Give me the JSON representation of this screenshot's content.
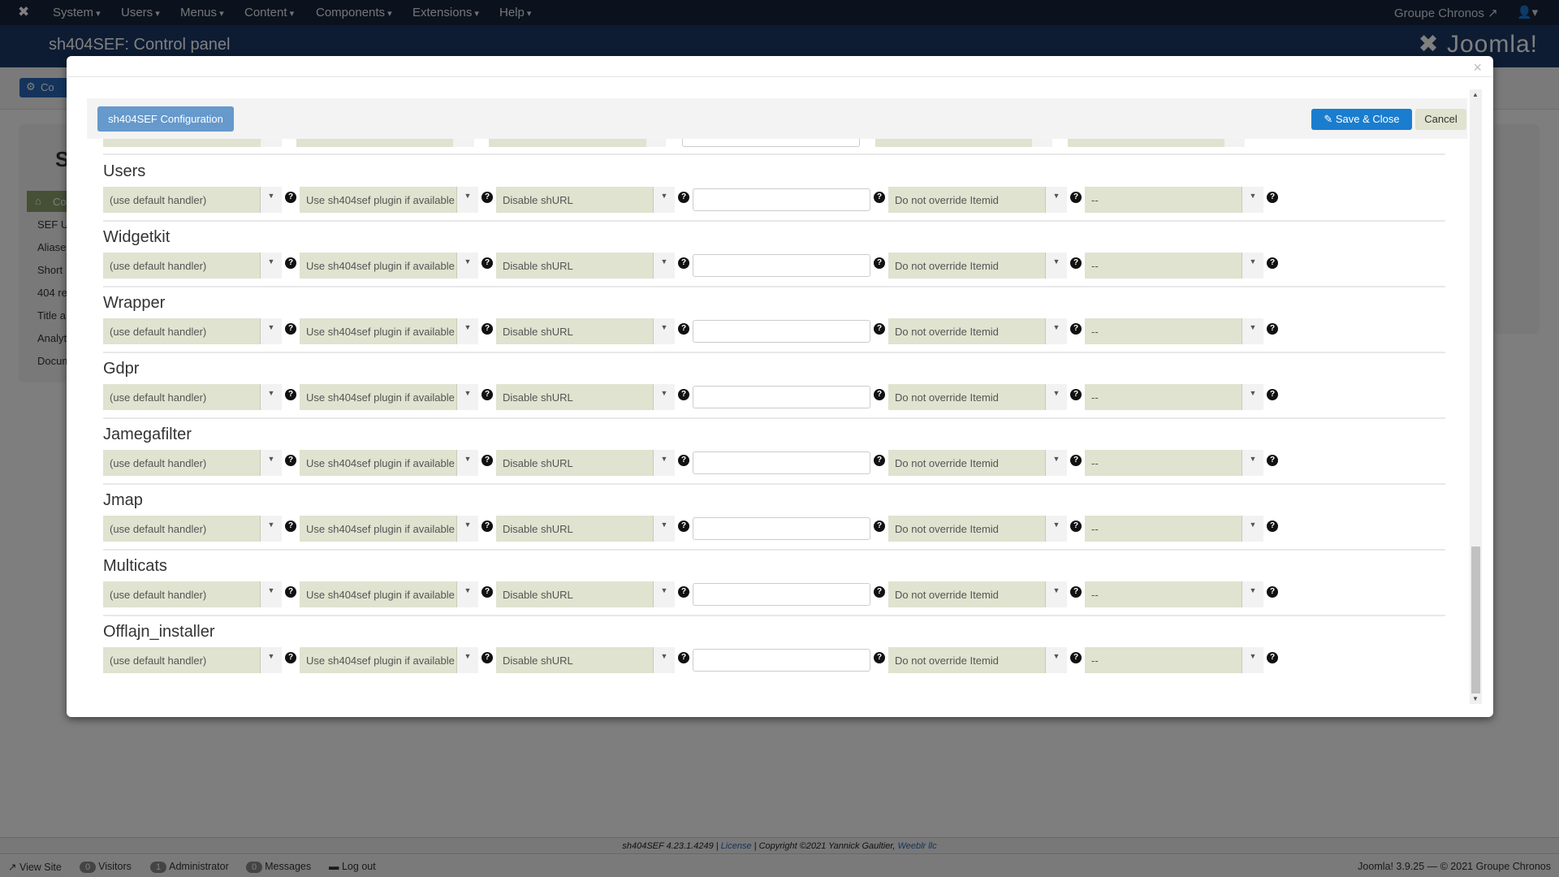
{
  "topnav": {
    "menu": [
      "System",
      "Users",
      "Menus",
      "Content",
      "Components",
      "Extensions",
      "Help"
    ],
    "site_link": "Groupe Chronos",
    "logo_text": "Joomla!"
  },
  "header": {
    "title": "sh404SEF: Control panel"
  },
  "background": {
    "toolbar_button": "Co",
    "sidebar_heading": "S",
    "sidebar_items": [
      "Co",
      "SEF U",
      "Aliase",
      "Short",
      "404 re",
      "Title a",
      "Analyt",
      "Docum"
    ]
  },
  "modal": {
    "close": "×",
    "toolbar": {
      "config_label": "sh404SEF Configuration",
      "save_label": "Save & Close",
      "cancel_label": "Cancel"
    },
    "components": [
      {
        "title": "Users",
        "handler": "(use default handler)",
        "plugin": "Use sh404sef plugin if available",
        "shurl": "Disable shURL",
        "prefix": "",
        "itemid": "Do not override Itemid",
        "extra": "--"
      },
      {
        "title": "Widgetkit",
        "handler": "(use default handler)",
        "plugin": "Use sh404sef plugin if available",
        "shurl": "Disable shURL",
        "prefix": "",
        "itemid": "Do not override Itemid",
        "extra": "--"
      },
      {
        "title": "Wrapper",
        "handler": "(use default handler)",
        "plugin": "Use sh404sef plugin if available",
        "shurl": "Disable shURL",
        "prefix": "",
        "itemid": "Do not override Itemid",
        "extra": "--"
      },
      {
        "title": "Gdpr",
        "handler": "(use default handler)",
        "plugin": "Use sh404sef plugin if available",
        "shurl": "Disable shURL",
        "prefix": "",
        "itemid": "Do not override Itemid",
        "extra": "--"
      },
      {
        "title": "Jamegafilter",
        "handler": "(use default handler)",
        "plugin": "Use sh404sef plugin if available",
        "shurl": "Disable shURL",
        "prefix": "",
        "itemid": "Do not override Itemid",
        "extra": "--"
      },
      {
        "title": "Jmap",
        "handler": "(use default handler)",
        "plugin": "Use sh404sef plugin if available",
        "shurl": "Disable shURL",
        "prefix": "",
        "itemid": "Do not override Itemid",
        "extra": "--"
      },
      {
        "title": "Multicats",
        "handler": "(use default handler)",
        "plugin": "Use sh404sef plugin if available",
        "shurl": "Disable shURL",
        "prefix": "",
        "itemid": "Do not override Itemid",
        "extra": "--"
      },
      {
        "title": "Offlajn_installer",
        "handler": "(use default handler)",
        "plugin": "Use sh404sef plugin if available",
        "shurl": "Disable shURL",
        "prefix": "",
        "itemid": "Do not override Itemid",
        "extra": "--"
      }
    ]
  },
  "footer": {
    "version": "sh404SEF 4.23.1.4249 | ",
    "license": "License",
    "copyright": " | Copyright ©2021 Yannick Gaultier, ",
    "company": "Weeblr llc"
  },
  "statusbar": {
    "view_site": "View Site",
    "visitors_count": "0",
    "visitors": "Visitors",
    "admin_count": "1",
    "admin": "Administrator",
    "messages_count": "0",
    "messages": "Messages",
    "logout": "Log out",
    "version": "Joomla! 3.9.25  —  © 2021 Groupe Chronos"
  },
  "colors": {
    "select_bg": "#dfe3cf",
    "save_button": "#1a7dce",
    "config_button": "#6699cc"
  }
}
